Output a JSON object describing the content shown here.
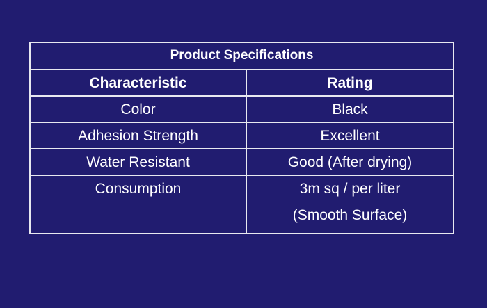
{
  "table": {
    "title": "Product Specifications",
    "header": [
      "Characteristic",
      "Rating"
    ],
    "rows": [
      [
        "Color",
        "Black"
      ],
      [
        "Adhesion Strength",
        "Excellent"
      ],
      [
        "Water Resistant",
        "Good (After drying)"
      ],
      [
        "Consumption",
        [
          "3m sq / per liter",
          "(Smooth Surface)"
        ]
      ]
    ]
  }
}
